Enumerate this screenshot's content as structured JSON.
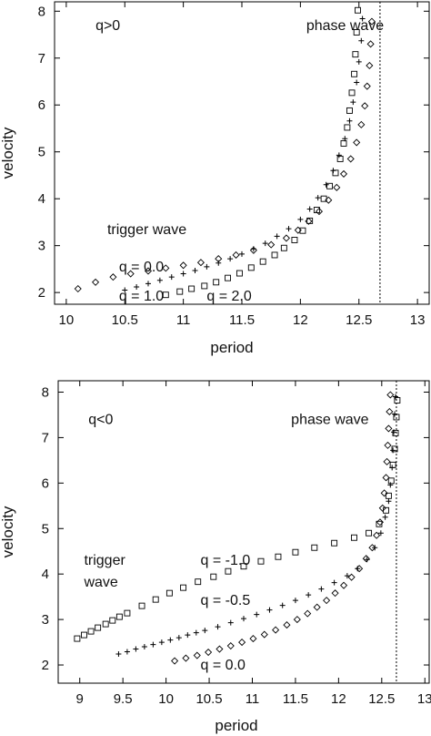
{
  "chart_data": [
    {
      "type": "scatter",
      "xlabel": "period",
      "ylabel": "velocity",
      "xlim": [
        9.9,
        13.1
      ],
      "ylim": [
        1.75,
        8.2
      ],
      "xticks": [
        {
          "v": 10,
          "label": "10"
        },
        {
          "v": 10.5,
          "label": "10.5"
        },
        {
          "v": 11,
          "label": "11"
        },
        {
          "v": 11.5,
          "label": "11.5"
        },
        {
          "v": 12,
          "label": "12"
        },
        {
          "v": 12.5,
          "label": "12.5"
        },
        {
          "v": 13,
          "label": "13"
        }
      ],
      "yticks": [
        {
          "v": 2,
          "label": "2"
        },
        {
          "v": 3,
          "label": "3"
        },
        {
          "v": 4,
          "label": "4"
        },
        {
          "v": 5,
          "label": "5"
        },
        {
          "v": 6,
          "label": "6"
        },
        {
          "v": 7,
          "label": "7"
        },
        {
          "v": 8,
          "label": "8"
        }
      ],
      "vline": {
        "x": 12.68,
        "style": "dotted"
      },
      "annotations": [
        {
          "text": "q>0",
          "x": 10.25,
          "y": 7.6
        },
        {
          "text": "phase wave",
          "x": 12.05,
          "y": 7.6
        },
        {
          "text": "trigger wave",
          "x": 10.35,
          "y": 3.25
        },
        {
          "text": "q = 0.0",
          "x": 10.45,
          "y": 2.45
        },
        {
          "text": "q = 1.0",
          "x": 10.45,
          "y": 1.83
        },
        {
          "text": "q = 2.0",
          "x": 11.2,
          "y": 1.83
        }
      ],
      "series": [
        {
          "marker": "square",
          "points": [
            [
              10.85,
              1.95
            ],
            [
              10.97,
              2.02
            ],
            [
              11.07,
              2.08
            ],
            [
              11.18,
              2.14
            ],
            [
              11.28,
              2.22
            ],
            [
              11.38,
              2.31
            ],
            [
              11.48,
              2.41
            ],
            [
              11.58,
              2.53
            ],
            [
              11.68,
              2.66
            ],
            [
              11.78,
              2.8
            ],
            [
              11.86,
              2.95
            ],
            [
              11.95,
              3.12
            ],
            [
              12.02,
              3.32
            ],
            [
              12.08,
              3.53
            ],
            [
              12.14,
              3.76
            ],
            [
              12.2,
              4.0
            ],
            [
              12.25,
              4.27
            ],
            [
              12.3,
              4.55
            ],
            [
              12.34,
              4.85
            ],
            [
              12.37,
              5.18
            ],
            [
              12.4,
              5.52
            ],
            [
              12.42,
              5.88
            ],
            [
              12.44,
              6.26
            ],
            [
              12.46,
              6.66
            ],
            [
              12.47,
              7.08
            ],
            [
              12.48,
              7.55
            ],
            [
              12.49,
              8.02
            ]
          ]
        },
        {
          "marker": "plus",
          "points": [
            [
              10.5,
              2.05
            ],
            [
              10.6,
              2.12
            ],
            [
              10.7,
              2.19
            ],
            [
              10.8,
              2.26
            ],
            [
              10.9,
              2.33
            ],
            [
              11.0,
              2.4
            ],
            [
              11.1,
              2.47
            ],
            [
              11.2,
              2.55
            ],
            [
              11.3,
              2.63
            ],
            [
              11.4,
              2.72
            ],
            [
              11.5,
              2.82
            ],
            [
              11.6,
              2.93
            ],
            [
              11.7,
              3.05
            ],
            [
              11.8,
              3.2
            ],
            [
              11.9,
              3.36
            ],
            [
              12.0,
              3.56
            ],
            [
              12.08,
              3.78
            ],
            [
              12.15,
              4.02
            ],
            [
              12.22,
              4.3
            ],
            [
              12.28,
              4.6
            ],
            [
              12.33,
              4.93
            ],
            [
              12.38,
              5.28
            ],
            [
              12.42,
              5.66
            ],
            [
              12.45,
              6.06
            ],
            [
              12.48,
              6.48
            ],
            [
              12.5,
              6.92
            ],
            [
              12.52,
              7.37
            ],
            [
              12.53,
              7.84
            ]
          ]
        },
        {
          "marker": "diamond",
          "points": [
            [
              10.1,
              2.08
            ],
            [
              10.25,
              2.22
            ],
            [
              10.4,
              2.33
            ],
            [
              10.55,
              2.4
            ],
            [
              10.7,
              2.46
            ],
            [
              10.85,
              2.52
            ],
            [
              11.0,
              2.58
            ],
            [
              11.15,
              2.64
            ],
            [
              11.3,
              2.72
            ],
            [
              11.45,
              2.8
            ],
            [
              11.6,
              2.9
            ],
            [
              11.75,
              3.02
            ],
            [
              11.88,
              3.16
            ],
            [
              11.98,
              3.33
            ],
            [
              12.07,
              3.52
            ],
            [
              12.16,
              3.73
            ],
            [
              12.24,
              3.97
            ],
            [
              12.31,
              4.24
            ],
            [
              12.37,
              4.53
            ],
            [
              12.43,
              4.85
            ],
            [
              12.48,
              5.2
            ],
            [
              12.52,
              5.58
            ],
            [
              12.55,
              5.98
            ],
            [
              12.57,
              6.4
            ],
            [
              12.59,
              6.84
            ],
            [
              12.6,
              7.3
            ],
            [
              12.61,
              7.78
            ]
          ]
        }
      ]
    },
    {
      "type": "scatter",
      "xlabel": "period",
      "ylabel": "velocity",
      "xlim": [
        8.75,
        13.05
      ],
      "ylim": [
        1.6,
        8.25
      ],
      "xticks": [
        {
          "v": 9,
          "label": "9"
        },
        {
          "v": 9.5,
          "label": "9.5"
        },
        {
          "v": 10,
          "label": "10"
        },
        {
          "v": 10.5,
          "label": "10.5"
        },
        {
          "v": 11,
          "label": "11"
        },
        {
          "v": 11.5,
          "label": "11.5"
        },
        {
          "v": 12,
          "label": "12"
        },
        {
          "v": 12.5,
          "label": "12.5"
        },
        {
          "v": 13,
          "label": "13"
        }
      ],
      "yticks": [
        {
          "v": 2,
          "label": "2"
        },
        {
          "v": 3,
          "label": "3"
        },
        {
          "v": 4,
          "label": "4"
        },
        {
          "v": 5,
          "label": "5"
        },
        {
          "v": 6,
          "label": "6"
        },
        {
          "v": 7,
          "label": "7"
        },
        {
          "v": 8,
          "label": "8"
        }
      ],
      "vline": {
        "x": 12.67,
        "style": "dotted"
      },
      "annotations": [
        {
          "text": "q<0",
          "x": 9.1,
          "y": 7.3
        },
        {
          "text": "phase wave",
          "x": 11.45,
          "y": 7.3
        },
        {
          "text": "trigger",
          "x": 9.05,
          "y": 4.2
        },
        {
          "text": "wave",
          "x": 9.05,
          "y": 3.72
        },
        {
          "text": "q = -1.0",
          "x": 10.4,
          "y": 4.2
        },
        {
          "text": "q = -0.5",
          "x": 10.4,
          "y": 3.32
        },
        {
          "text": "q = 0.0",
          "x": 10.4,
          "y": 1.9
        }
      ],
      "series": [
        {
          "marker": "square",
          "points": [
            [
              8.97,
              2.58
            ],
            [
              9.05,
              2.66
            ],
            [
              9.13,
              2.74
            ],
            [
              9.21,
              2.82
            ],
            [
              9.3,
              2.9
            ],
            [
              9.38,
              2.98
            ],
            [
              9.46,
              3.06
            ],
            [
              9.55,
              3.14
            ],
            [
              9.72,
              3.3
            ],
            [
              9.88,
              3.44
            ],
            [
              10.04,
              3.58
            ],
            [
              10.2,
              3.7
            ],
            [
              10.37,
              3.83
            ],
            [
              10.55,
              3.94
            ],
            [
              10.72,
              4.06
            ],
            [
              10.9,
              4.17
            ],
            [
              11.1,
              4.28
            ],
            [
              11.3,
              4.38
            ],
            [
              11.5,
              4.48
            ],
            [
              11.72,
              4.58
            ],
            [
              11.95,
              4.68
            ],
            [
              12.18,
              4.8
            ],
            [
              12.35,
              4.9
            ],
            [
              12.47,
              5.1
            ],
            [
              12.55,
              5.4
            ],
            [
              12.58,
              5.72
            ],
            [
              12.61,
              6.05
            ],
            [
              12.63,
              6.4
            ],
            [
              12.65,
              6.75
            ],
            [
              12.66,
              7.1
            ],
            [
              12.67,
              7.45
            ],
            [
              12.68,
              7.82
            ]
          ]
        },
        {
          "marker": "plus",
          "points": [
            [
              9.45,
              2.24
            ],
            [
              9.55,
              2.29
            ],
            [
              9.65,
              2.35
            ],
            [
              9.75,
              2.4
            ],
            [
              9.85,
              2.45
            ],
            [
              9.95,
              2.5
            ],
            [
              10.05,
              2.55
            ],
            [
              10.15,
              2.6
            ],
            [
              10.25,
              2.66
            ],
            [
              10.35,
              2.71
            ],
            [
              10.45,
              2.76
            ],
            [
              10.6,
              2.84
            ],
            [
              10.75,
              2.93
            ],
            [
              10.9,
              3.02
            ],
            [
              11.05,
              3.11
            ],
            [
              11.2,
              3.21
            ],
            [
              11.35,
              3.31
            ],
            [
              11.5,
              3.42
            ],
            [
              11.65,
              3.54
            ],
            [
              11.8,
              3.67
            ],
            [
              11.95,
              3.81
            ],
            [
              12.1,
              3.96
            ],
            [
              12.22,
              4.12
            ],
            [
              12.33,
              4.32
            ],
            [
              12.42,
              4.58
            ],
            [
              12.49,
              4.9
            ],
            [
              12.54,
              5.25
            ],
            [
              12.58,
              5.6
            ],
            [
              12.6,
              5.96
            ],
            [
              12.62,
              6.34
            ],
            [
              12.63,
              6.72
            ],
            [
              12.64,
              7.12
            ],
            [
              12.65,
              7.52
            ],
            [
              12.66,
              7.9
            ]
          ]
        },
        {
          "marker": "diamond",
          "points": [
            [
              10.1,
              2.09
            ],
            [
              10.23,
              2.15
            ],
            [
              10.36,
              2.21
            ],
            [
              10.49,
              2.28
            ],
            [
              10.62,
              2.35
            ],
            [
              10.75,
              2.42
            ],
            [
              10.88,
              2.5
            ],
            [
              11.01,
              2.58
            ],
            [
              11.14,
              2.67
            ],
            [
              11.27,
              2.77
            ],
            [
              11.4,
              2.88
            ],
            [
              11.52,
              3.0
            ],
            [
              11.64,
              3.13
            ],
            [
              11.75,
              3.27
            ],
            [
              11.86,
              3.42
            ],
            [
              11.96,
              3.58
            ],
            [
              12.06,
              3.75
            ],
            [
              12.15,
              3.93
            ],
            [
              12.24,
              4.12
            ],
            [
              12.32,
              4.34
            ],
            [
              12.39,
              4.58
            ],
            [
              12.44,
              4.85
            ],
            [
              12.48,
              5.14
            ],
            [
              12.51,
              5.45
            ],
            [
              12.53,
              5.78
            ],
            [
              12.55,
              6.12
            ],
            [
              12.56,
              6.47
            ],
            [
              12.57,
              6.83
            ],
            [
              12.58,
              7.2
            ],
            [
              12.59,
              7.57
            ],
            [
              12.6,
              7.94
            ]
          ]
        }
      ]
    }
  ]
}
